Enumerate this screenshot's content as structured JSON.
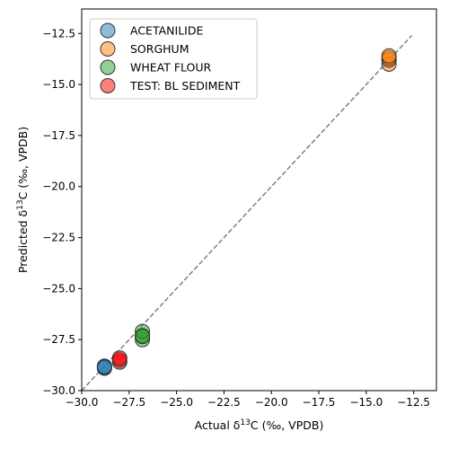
{
  "chart_data": {
    "type": "scatter",
    "xlabel": "Actual δ13C (‰, VPDB)",
    "xlabel_parts": {
      "pre": "Actual δ",
      "sup": "13",
      "post": "C (‰, VPDB)"
    },
    "ylabel": "Predicted δ13C (‰, VPDB)",
    "ylabel_parts": {
      "pre": "Predicted δ",
      "sup": "13",
      "post": "C (‰, VPDB)"
    },
    "xlim": [
      -30.0,
      -11.3
    ],
    "ylim": [
      -30.0,
      -11.3
    ],
    "xticks": [
      -30.0,
      -27.5,
      -25.0,
      -22.5,
      -20.0,
      -17.5,
      -15.0,
      -12.5
    ],
    "xtick_labels": [
      "−30.0",
      "−27.5",
      "−25.0",
      "−22.5",
      "−20.0",
      "−17.5",
      "−15.0",
      "−12.5"
    ],
    "yticks": [
      -30.0,
      -27.5,
      -25.0,
      -22.5,
      -20.0,
      -17.5,
      -15.0,
      -12.5
    ],
    "ytick_labels": [
      "−30.0",
      "−27.5",
      "−25.0",
      "−22.5",
      "−20.0",
      "−17.5",
      "−15.0",
      "−12.5"
    ],
    "identity_line": {
      "from": -30.0,
      "to": -12.6,
      "color": "#7f7f7f"
    },
    "grid": false,
    "legend_position": "upper-left",
    "series": [
      {
        "name": "ACETANILIDE",
        "color": "#1f77b4",
        "points": [
          {
            "x": -28.8,
            "y": -28.9
          },
          {
            "x": -28.8,
            "y": -28.8
          },
          {
            "x": -28.8,
            "y": -28.85
          }
        ]
      },
      {
        "name": "SORGHUM",
        "color": "#ff7f0e",
        "points": [
          {
            "x": -13.8,
            "y": -14.0
          },
          {
            "x": -13.8,
            "y": -13.8
          },
          {
            "x": -13.8,
            "y": -13.7
          },
          {
            "x": -13.8,
            "y": -13.6
          }
        ]
      },
      {
        "name": "WHEAT FLOUR",
        "color": "#2ca02c",
        "points": [
          {
            "x": -26.8,
            "y": -27.5
          },
          {
            "x": -26.8,
            "y": -27.3
          },
          {
            "x": -26.8,
            "y": -27.1
          },
          {
            "x": -26.8,
            "y": -27.35
          }
        ]
      },
      {
        "name": "TEST: BL SEDIMENT",
        "color": "#ff0000",
        "points": [
          {
            "x": -28.0,
            "y": -28.6
          },
          {
            "x": -28.0,
            "y": -28.5
          },
          {
            "x": -28.0,
            "y": -28.4
          }
        ]
      }
    ]
  }
}
